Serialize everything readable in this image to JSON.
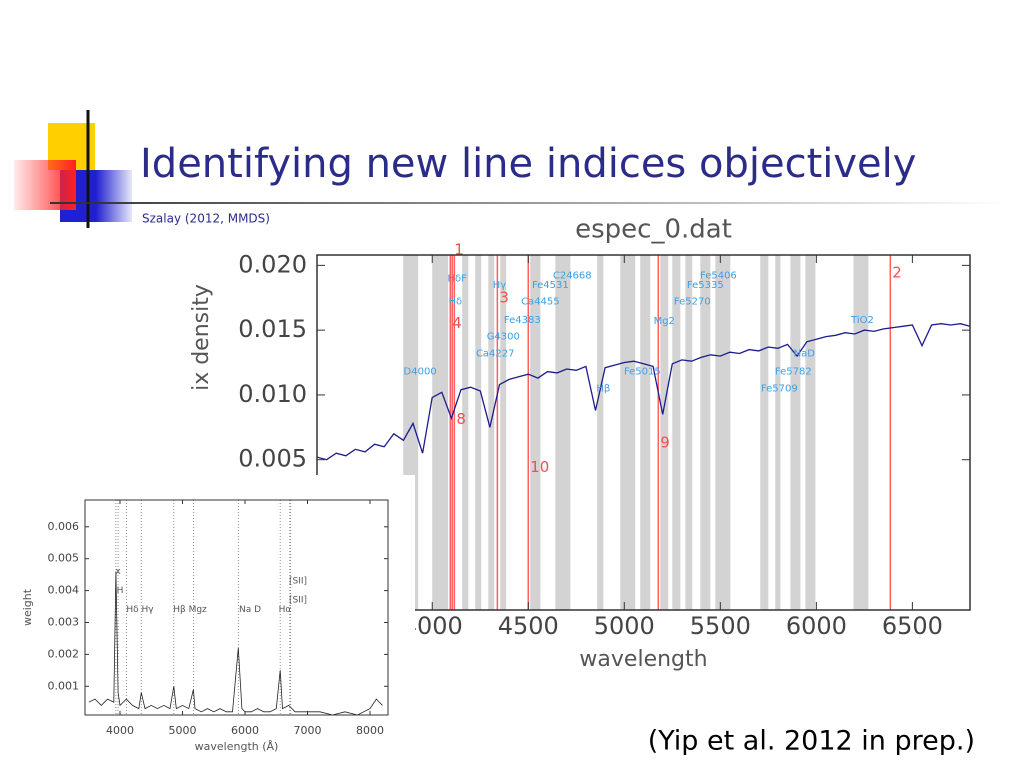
{
  "slide": {
    "title": "Identifying new line indices objectively",
    "subtitle": "Szalay (2012, MMDS)",
    "citation": "(Yip et al. 2012 in prep.)"
  },
  "chart_data": [
    {
      "type": "line",
      "title": "espec_0.dat",
      "x_label": "wavelength",
      "y_label": "ix density",
      "color": "#1c1c8f",
      "x": [
        3400,
        3450,
        3500,
        3550,
        3600,
        3650,
        3700,
        3750,
        3800,
        3850,
        3900,
        3950,
        4000,
        4050,
        4100,
        4150,
        4200,
        4250,
        4300,
        4350,
        4400,
        4450,
        4500,
        4550,
        4600,
        4650,
        4700,
        4750,
        4800,
        4850,
        4900,
        4950,
        5000,
        5050,
        5100,
        5150,
        5200,
        5250,
        5300,
        5350,
        5400,
        5450,
        5500,
        5550,
        5600,
        5650,
        5700,
        5750,
        5800,
        5850,
        5900,
        5950,
        6000,
        6050,
        6100,
        6150,
        6200,
        6250,
        6300,
        6350,
        6400,
        6450,
        6500,
        6550,
        6600,
        6650,
        6700,
        6750,
        6800
      ],
      "values": [
        0.0052,
        0.005,
        0.0055,
        0.0053,
        0.0058,
        0.0056,
        0.0062,
        0.006,
        0.007,
        0.0065,
        0.0078,
        0.0055,
        0.0098,
        0.0102,
        0.0082,
        0.0104,
        0.0106,
        0.0103,
        0.0075,
        0.0108,
        0.0112,
        0.0114,
        0.0116,
        0.0113,
        0.0118,
        0.0117,
        0.012,
        0.0119,
        0.0122,
        0.0088,
        0.0121,
        0.0123,
        0.0125,
        0.0126,
        0.0124,
        0.0122,
        0.0085,
        0.0124,
        0.0127,
        0.0126,
        0.0129,
        0.0131,
        0.013,
        0.0133,
        0.0132,
        0.0135,
        0.0134,
        0.0137,
        0.0136,
        0.0139,
        0.013,
        0.0141,
        0.0143,
        0.0145,
        0.0146,
        0.0148,
        0.0147,
        0.015,
        0.0149,
        0.0151,
        0.0152,
        0.0153,
        0.0154,
        0.0138,
        0.0154,
        0.0155,
        0.0154,
        0.0155,
        0.0153
      ],
      "xlim": [
        3400,
        6800
      ],
      "xticks": [
        4000,
        4500,
        5000,
        5500,
        6000,
        6500
      ],
      "ylim": [
        -0.0066,
        0.0208
      ],
      "yticks": [
        {
          "value": 0.02,
          "label": "0.020"
        },
        {
          "value": 0.015,
          "label": "0.015"
        },
        {
          "value": 0.01,
          "label": "0.010"
        },
        {
          "value": 0.005,
          "label": "0.005"
        }
      ],
      "bands": [
        [
          3849,
          3927
        ],
        [
          4000,
          4083
        ],
        [
          4156,
          4188
        ],
        [
          4224,
          4255
        ],
        [
          4292,
          4323
        ],
        [
          4354,
          4385
        ],
        [
          4510,
          4563
        ],
        [
          4641,
          4719
        ],
        [
          4859,
          4891
        ],
        [
          4979,
          5057
        ],
        [
          5083,
          5135
        ],
        [
          5188,
          5229
        ],
        [
          5250,
          5292
        ],
        [
          5318,
          5354
        ],
        [
          5396,
          5448
        ],
        [
          5474,
          5552
        ],
        [
          5708,
          5750
        ],
        [
          5786,
          5813
        ],
        [
          5865,
          5917
        ],
        [
          5943,
          5995
        ],
        [
          6193,
          6271
        ]
      ],
      "markers": [
        {
          "label": "1",
          "x": 4104,
          "y": 0.0212
        },
        {
          "label": "2",
          "x": 6385,
          "y": 0.0194
        },
        {
          "label": "3",
          "x": 4339,
          "y": 0.0175
        },
        {
          "label": "4",
          "x": 4094,
          "y": 0.0155
        },
        {
          "label": "8",
          "x": 4115,
          "y": 0.0081
        },
        {
          "label": "9",
          "x": 5177,
          "y": 0.0063
        },
        {
          "label": "10",
          "x": 4500,
          "y": 0.0044
        }
      ],
      "annotations": [
        {
          "text": "HδF",
          "x": 4130,
          "y": 0.019
        },
        {
          "text": "Fe5406",
          "x": 5490,
          "y": 0.0192
        },
        {
          "text": "C24668",
          "x": 4729,
          "y": 0.0192
        },
        {
          "text": "Hγ",
          "x": 4350,
          "y": 0.0185
        },
        {
          "text": "Fe4531",
          "x": 4615,
          "y": 0.0185
        },
        {
          "text": "Fe5335",
          "x": 5422,
          "y": 0.0185
        },
        {
          "text": "Hδ",
          "x": 4120,
          "y": 0.0172
        },
        {
          "text": "Ca4455",
          "x": 4563,
          "y": 0.0172
        },
        {
          "text": "Fe5270",
          "x": 5354,
          "y": 0.0172
        },
        {
          "text": "Fe4383",
          "x": 4469,
          "y": 0.0158
        },
        {
          "text": "Mg2",
          "x": 5208,
          "y": 0.0157
        },
        {
          "text": "TiO2",
          "x": 6240,
          "y": 0.0158
        },
        {
          "text": "G4300",
          "x": 4370,
          "y": 0.0145
        },
        {
          "text": "Ca4227",
          "x": 4328,
          "y": 0.0132
        },
        {
          "text": "NaD",
          "x": 5937,
          "y": 0.0132
        },
        {
          "text": "D4000",
          "x": 3937,
          "y": 0.0118
        },
        {
          "text": "Fe5015",
          "x": 5094,
          "y": 0.0118
        },
        {
          "text": "Fe5782",
          "x": 5880,
          "y": 0.0118
        },
        {
          "text": "Hβ",
          "x": 4891,
          "y": 0.0105
        },
        {
          "text": "Fe5709",
          "x": 5807,
          "y": 0.0105
        }
      ]
    },
    {
      "type": "line",
      "x_label": "wavelength (Å)",
      "y_label": "weight",
      "color": "#222222",
      "x": [
        3500,
        3600,
        3700,
        3800,
        3900,
        3934,
        3970,
        4000,
        4100,
        4200,
        4300,
        4340,
        4400,
        4500,
        4600,
        4700,
        4800,
        4861,
        4900,
        5000,
        5100,
        5175,
        5200,
        5300,
        5400,
        5500,
        5600,
        5700,
        5800,
        5893,
        5950,
        6000,
        6100,
        6200,
        6300,
        6400,
        6500,
        6563,
        6600,
        6700,
        6800,
        6900,
        7000,
        7200,
        7400,
        7600,
        7800,
        8000,
        8100,
        8200
      ],
      "values": [
        0.0005,
        0.0006,
        0.0004,
        0.0006,
        0.0005,
        0.0046,
        0.0008,
        0.0004,
        0.0006,
        0.0004,
        0.0003,
        0.0008,
        0.0003,
        0.0004,
        0.0003,
        0.0004,
        0.0003,
        0.001,
        0.0003,
        0.0004,
        0.0003,
        0.0009,
        0.0003,
        0.0002,
        0.0003,
        0.0002,
        0.0003,
        0.0002,
        0.0002,
        0.0022,
        0.0003,
        0.0002,
        0.0002,
        0.0003,
        0.0002,
        0.0002,
        0.0003,
        0.0015,
        0.0003,
        0.0004,
        0.0002,
        0.0002,
        0.0002,
        0.0002,
        0.0001,
        0.0002,
        0.0001,
        0.0003,
        0.0006,
        0.0004
      ],
      "xlim": [
        3440,
        8288
      ],
      "xticks": [
        4000,
        5000,
        6000,
        7000,
        8000
      ],
      "ylim": [
        0.0001,
        0.00684
      ],
      "yticks": [
        0.001,
        0.002,
        0.003,
        0.004,
        0.005,
        0.006
      ],
      "guides": [
        3934,
        3969,
        4102,
        4340,
        4861,
        5175,
        5893,
        6563,
        6717,
        6731
      ],
      "annotations": [
        {
          "text": "x",
          "x": 3968,
          "y": 0.0046
        },
        {
          "text": "H",
          "x": 4000,
          "y": 0.004
        },
        {
          "text": "Hδ Hγ",
          "x": 4320,
          "y": 0.0034
        },
        {
          "text": "Hβ Mgz",
          "x": 5120,
          "y": 0.0034
        },
        {
          "text": "Na D",
          "x": 6080,
          "y": 0.0034
        },
        {
          "text": "Hα",
          "x": 6640,
          "y": 0.0034
        },
        {
          "text": "[SII]",
          "x": 6848,
          "y": 0.0043
        },
        {
          "text": "[SII]",
          "x": 6848,
          "y": 0.0037
        }
      ]
    }
  ]
}
